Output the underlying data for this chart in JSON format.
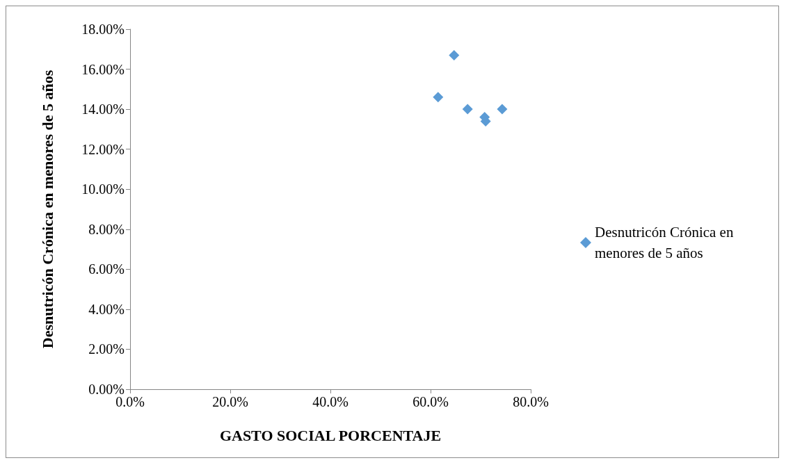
{
  "chart_data": {
    "type": "scatter",
    "xlabel": "GASTO SOCIAL PORCENTAJE",
    "ylabel": "Desnutricón Crónica en menores de 5 años",
    "series": [
      {
        "name": "Desnutricón Crónica en menores de 5 años",
        "color": "#5b9bd5",
        "x": [
          61.5,
          64.7,
          67.4,
          70.8,
          71.0,
          74.3
        ],
        "values": [
          14.6,
          16.7,
          14.0,
          13.6,
          13.4,
          14.0
        ]
      }
    ],
    "xlim": [
      0,
      80
    ],
    "xticks": [
      {
        "value": 0,
        "label": "0.0%"
      },
      {
        "value": 20,
        "label": "20.0%"
      },
      {
        "value": 40,
        "label": "40.0%"
      },
      {
        "value": 60,
        "label": "60.0%"
      },
      {
        "value": 80,
        "label": "80.0%"
      }
    ],
    "ylim": [
      0,
      18
    ],
    "yticks": [
      {
        "value": 0,
        "label": "0.00%"
      },
      {
        "value": 2,
        "label": "2.00%"
      },
      {
        "value": 4,
        "label": "4.00%"
      },
      {
        "value": 6,
        "label": "6.00%"
      },
      {
        "value": 8,
        "label": "8.00%"
      },
      {
        "value": 10,
        "label": "10.00%"
      },
      {
        "value": 12,
        "label": "12.00%"
      },
      {
        "value": 14,
        "label": "14.00%"
      },
      {
        "value": 16,
        "label": "16.00%"
      },
      {
        "value": 18,
        "label": "18.00%"
      }
    ],
    "grid": false,
    "legend": "right",
    "marker": "diamond"
  }
}
